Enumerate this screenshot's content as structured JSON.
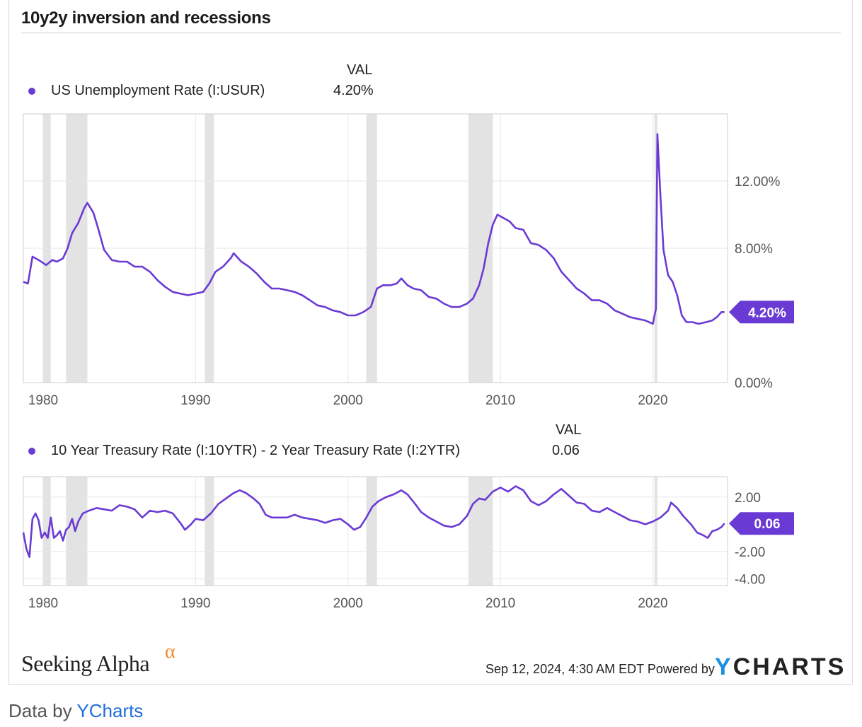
{
  "title": "10y2y inversion and recessions",
  "footer": {
    "brand": "Seeking Alpha",
    "brand_mark": "α",
    "timestamp": "Sep 12, 2024, 4:30 AM EDT Powered by",
    "ycharts_y": "Y",
    "ycharts_rest": "CHARTS",
    "data_by_prefix": "Data by",
    "data_by_link": "YCharts"
  },
  "colors": {
    "series": "#6a3bd4",
    "recession": "#e3e3e3",
    "grid": "#e6e6e6"
  },
  "chart_data": [
    {
      "type": "line",
      "val_header": "VAL",
      "series": [
        {
          "name": "US Unemployment Rate (I:USUR)",
          "current": "4.20%",
          "points": [
            [
              1978.7,
              6.0
            ],
            [
              1979.0,
              5.9
            ],
            [
              1979.3,
              7.5
            ],
            [
              1979.7,
              7.3
            ],
            [
              1980.2,
              7.0
            ],
            [
              1980.6,
              7.3
            ],
            [
              1980.9,
              7.2
            ],
            [
              1981.3,
              7.4
            ],
            [
              1981.6,
              8.0
            ],
            [
              1981.9,
              8.9
            ],
            [
              1982.3,
              9.5
            ],
            [
              1982.7,
              10.4
            ],
            [
              1982.9,
              10.7
            ],
            [
              1983.3,
              10.1
            ],
            [
              1983.6,
              9.2
            ],
            [
              1984.0,
              7.9
            ],
            [
              1984.5,
              7.3
            ],
            [
              1985.0,
              7.2
            ],
            [
              1985.5,
              7.2
            ],
            [
              1986.0,
              6.9
            ],
            [
              1986.5,
              6.9
            ],
            [
              1987.0,
              6.6
            ],
            [
              1987.5,
              6.1
            ],
            [
              1988.0,
              5.7
            ],
            [
              1988.5,
              5.4
            ],
            [
              1989.0,
              5.3
            ],
            [
              1989.5,
              5.2
            ],
            [
              1990.0,
              5.3
            ],
            [
              1990.5,
              5.4
            ],
            [
              1990.9,
              5.9
            ],
            [
              1991.3,
              6.6
            ],
            [
              1991.8,
              6.9
            ],
            [
              1992.3,
              7.4
            ],
            [
              1992.5,
              7.7
            ],
            [
              1993.0,
              7.2
            ],
            [
              1993.5,
              6.9
            ],
            [
              1994.0,
              6.5
            ],
            [
              1994.5,
              6.0
            ],
            [
              1995.0,
              5.6
            ],
            [
              1995.5,
              5.6
            ],
            [
              1996.0,
              5.5
            ],
            [
              1996.5,
              5.4
            ],
            [
              1997.0,
              5.2
            ],
            [
              1997.5,
              4.9
            ],
            [
              1998.0,
              4.6
            ],
            [
              1998.5,
              4.5
            ],
            [
              1999.0,
              4.3
            ],
            [
              1999.5,
              4.2
            ],
            [
              2000.0,
              4.0
            ],
            [
              2000.5,
              4.0
            ],
            [
              2001.0,
              4.2
            ],
            [
              2001.5,
              4.5
            ],
            [
              2001.9,
              5.6
            ],
            [
              2002.3,
              5.8
            ],
            [
              2002.8,
              5.8
            ],
            [
              2003.2,
              5.9
            ],
            [
              2003.5,
              6.2
            ],
            [
              2003.9,
              5.8
            ],
            [
              2004.3,
              5.6
            ],
            [
              2004.8,
              5.5
            ],
            [
              2005.3,
              5.1
            ],
            [
              2005.8,
              5.0
            ],
            [
              2006.3,
              4.7
            ],
            [
              2006.8,
              4.5
            ],
            [
              2007.3,
              4.5
            ],
            [
              2007.8,
              4.7
            ],
            [
              2008.2,
              5.0
            ],
            [
              2008.6,
              5.8
            ],
            [
              2008.9,
              6.8
            ],
            [
              2009.2,
              8.3
            ],
            [
              2009.5,
              9.4
            ],
            [
              2009.8,
              10.0
            ],
            [
              2010.2,
              9.8
            ],
            [
              2010.6,
              9.6
            ],
            [
              2011.0,
              9.2
            ],
            [
              2011.5,
              9.1
            ],
            [
              2012.0,
              8.3
            ],
            [
              2012.5,
              8.2
            ],
            [
              2013.0,
              7.9
            ],
            [
              2013.5,
              7.4
            ],
            [
              2014.0,
              6.6
            ],
            [
              2014.5,
              6.1
            ],
            [
              2015.0,
              5.6
            ],
            [
              2015.5,
              5.3
            ],
            [
              2016.0,
              4.9
            ],
            [
              2016.5,
              4.9
            ],
            [
              2017.0,
              4.7
            ],
            [
              2017.5,
              4.3
            ],
            [
              2018.0,
              4.1
            ],
            [
              2018.5,
              3.9
            ],
            [
              2019.0,
              3.8
            ],
            [
              2019.5,
              3.7
            ],
            [
              2020.0,
              3.5
            ],
            [
              2020.2,
              4.4
            ],
            [
              2020.3,
              14.8
            ],
            [
              2020.5,
              11.1
            ],
            [
              2020.7,
              7.9
            ],
            [
              2021.0,
              6.4
            ],
            [
              2021.3,
              6.0
            ],
            [
              2021.6,
              5.2
            ],
            [
              2021.9,
              4.0
            ],
            [
              2022.2,
              3.6
            ],
            [
              2022.6,
              3.6
            ],
            [
              2023.0,
              3.5
            ],
            [
              2023.5,
              3.6
            ],
            [
              2023.9,
              3.7
            ],
            [
              2024.2,
              3.9
            ],
            [
              2024.5,
              4.2
            ],
            [
              2024.7,
              4.2
            ]
          ]
        }
      ],
      "y_ticks": [
        "12.00%",
        "8.00%",
        "0.00%"
      ],
      "y_tick_values": [
        12,
        8,
        0
      ],
      "ylim": [
        0,
        16
      ],
      "x_ticks": [
        "1980",
        "1990",
        "2000",
        "2010",
        "2020"
      ],
      "x_tick_values": [
        1980,
        1990,
        2000,
        2010,
        2020
      ],
      "xlim": [
        1978.7,
        2024.9
      ],
      "recessions": [
        [
          1980.0,
          1980.5
        ],
        [
          1981.5,
          1982.9
        ],
        [
          1990.6,
          1991.2
        ],
        [
          2001.2,
          2001.9
        ],
        [
          2007.9,
          2009.5
        ],
        [
          2020.1,
          2020.3
        ]
      ]
    },
    {
      "type": "line",
      "val_header": "VAL",
      "series": [
        {
          "name": "10 Year Treasury Rate (I:10YTR) - 2 Year Treasury Rate (I:2YTR)",
          "current": "0.06",
          "points": [
            [
              1978.7,
              -0.6
            ],
            [
              1978.9,
              -1.8
            ],
            [
              1979.1,
              -2.4
            ],
            [
              1979.3,
              0.4
            ],
            [
              1979.5,
              0.8
            ],
            [
              1979.7,
              0.3
            ],
            [
              1979.9,
              -1.0
            ],
            [
              1980.1,
              -0.6
            ],
            [
              1980.3,
              -1.0
            ],
            [
              1980.5,
              0.5
            ],
            [
              1980.7,
              -1.0
            ],
            [
              1980.9,
              -0.8
            ],
            [
              1981.1,
              -0.5
            ],
            [
              1981.3,
              -1.2
            ],
            [
              1981.5,
              -0.4
            ],
            [
              1981.7,
              -0.2
            ],
            [
              1981.9,
              0.4
            ],
            [
              1982.1,
              -0.5
            ],
            [
              1982.3,
              0.2
            ],
            [
              1982.6,
              0.8
            ],
            [
              1983.0,
              1.0
            ],
            [
              1983.5,
              1.2
            ],
            [
              1984.0,
              1.1
            ],
            [
              1984.5,
              1.0
            ],
            [
              1985.0,
              1.4
            ],
            [
              1985.5,
              1.3
            ],
            [
              1986.0,
              1.1
            ],
            [
              1986.5,
              0.5
            ],
            [
              1987.0,
              1.0
            ],
            [
              1987.5,
              0.9
            ],
            [
              1988.0,
              1.0
            ],
            [
              1988.5,
              0.8
            ],
            [
              1989.0,
              0.1
            ],
            [
              1989.3,
              -0.4
            ],
            [
              1989.7,
              0.0
            ],
            [
              1990.0,
              0.4
            ],
            [
              1990.5,
              0.3
            ],
            [
              1991.0,
              0.8
            ],
            [
              1991.5,
              1.5
            ],
            [
              1992.0,
              1.9
            ],
            [
              1992.5,
              2.3
            ],
            [
              1992.9,
              2.5
            ],
            [
              1993.3,
              2.3
            ],
            [
              1993.8,
              1.9
            ],
            [
              1994.2,
              1.5
            ],
            [
              1994.6,
              0.7
            ],
            [
              1995.0,
              0.5
            ],
            [
              1995.5,
              0.5
            ],
            [
              1996.0,
              0.5
            ],
            [
              1996.5,
              0.7
            ],
            [
              1997.0,
              0.5
            ],
            [
              1997.5,
              0.4
            ],
            [
              1998.0,
              0.3
            ],
            [
              1998.5,
              0.1
            ],
            [
              1999.0,
              0.3
            ],
            [
              1999.5,
              0.4
            ],
            [
              2000.0,
              0.0
            ],
            [
              2000.4,
              -0.4
            ],
            [
              2000.8,
              -0.2
            ],
            [
              2001.2,
              0.5
            ],
            [
              2001.6,
              1.3
            ],
            [
              2002.0,
              1.7
            ],
            [
              2002.5,
              2.0
            ],
            [
              2003.0,
              2.2
            ],
            [
              2003.5,
              2.5
            ],
            [
              2003.9,
              2.2
            ],
            [
              2004.4,
              1.5
            ],
            [
              2004.8,
              0.9
            ],
            [
              2005.3,
              0.5
            ],
            [
              2005.8,
              0.2
            ],
            [
              2006.3,
              -0.1
            ],
            [
              2006.8,
              -0.2
            ],
            [
              2007.3,
              0.0
            ],
            [
              2007.8,
              0.6
            ],
            [
              2008.2,
              1.5
            ],
            [
              2008.6,
              1.9
            ],
            [
              2009.0,
              1.8
            ],
            [
              2009.5,
              2.4
            ],
            [
              2010.0,
              2.7
            ],
            [
              2010.5,
              2.4
            ],
            [
              2011.0,
              2.8
            ],
            [
              2011.5,
              2.5
            ],
            [
              2012.0,
              1.7
            ],
            [
              2012.5,
              1.4
            ],
            [
              2013.0,
              1.7
            ],
            [
              2013.5,
              2.2
            ],
            [
              2014.0,
              2.6
            ],
            [
              2014.5,
              2.1
            ],
            [
              2015.0,
              1.6
            ],
            [
              2015.5,
              1.5
            ],
            [
              2016.0,
              1.0
            ],
            [
              2016.5,
              0.9
            ],
            [
              2017.0,
              1.2
            ],
            [
              2017.5,
              0.9
            ],
            [
              2018.0,
              0.6
            ],
            [
              2018.5,
              0.3
            ],
            [
              2019.0,
              0.2
            ],
            [
              2019.5,
              0.0
            ],
            [
              2020.0,
              0.2
            ],
            [
              2020.5,
              0.5
            ],
            [
              2021.0,
              1.0
            ],
            [
              2021.2,
              1.6
            ],
            [
              2021.6,
              1.2
            ],
            [
              2022.0,
              0.6
            ],
            [
              2022.5,
              0.0
            ],
            [
              2022.9,
              -0.6
            ],
            [
              2023.3,
              -0.8
            ],
            [
              2023.6,
              -1.0
            ],
            [
              2023.9,
              -0.5
            ],
            [
              2024.2,
              -0.4
            ],
            [
              2024.5,
              -0.2
            ],
            [
              2024.7,
              0.06
            ]
          ]
        }
      ],
      "y_ticks": [
        "2.00",
        "-2.00",
        "-4.00"
      ],
      "y_tick_values": [
        2,
        -2,
        -4
      ],
      "ylim": [
        -4.5,
        3.5
      ],
      "x_ticks": [
        "1980",
        "1990",
        "2000",
        "2010",
        "2020"
      ],
      "x_tick_values": [
        1980,
        1990,
        2000,
        2010,
        2020
      ],
      "xlim": [
        1978.7,
        2024.9
      ],
      "recessions": [
        [
          1980.0,
          1980.5
        ],
        [
          1981.5,
          1982.9
        ],
        [
          1990.6,
          1991.2
        ],
        [
          2001.2,
          2001.9
        ],
        [
          2007.9,
          2009.5
        ],
        [
          2020.1,
          2020.3
        ]
      ]
    }
  ]
}
